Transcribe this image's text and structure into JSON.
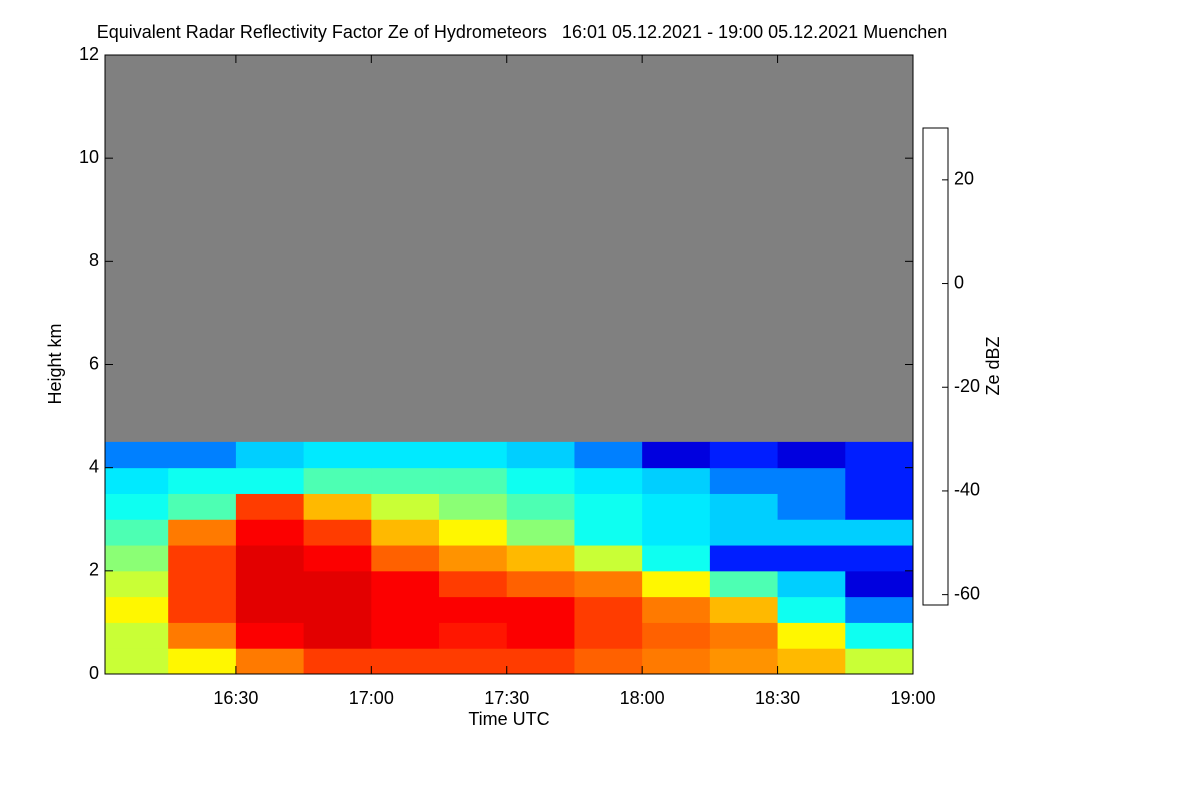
{
  "chart_data": {
    "type": "heatmap",
    "title": "Equivalent Radar Reflectivity Factor Ze of Hydrometeors   16:01 05.12.2021 - 19:00 05.12.2021 Muenchen",
    "x_label": "Time UTC",
    "y_label": "Height km",
    "colorbar_label": "Ze dBZ",
    "x_edges": [
      16.0167,
      16.25,
      16.5,
      16.75,
      17.0,
      17.25,
      17.5,
      17.75,
      18.0,
      18.25,
      18.5,
      18.75,
      19.0
    ],
    "y_edges": [
      0,
      0.5,
      1.0,
      1.5,
      2.0,
      2.5,
      3.0,
      3.5,
      4.0,
      4.5
    ],
    "z": [
      [
        -5,
        0,
        10,
        15,
        15,
        15,
        15,
        12,
        10,
        8,
        5,
        -5
      ],
      [
        -5,
        10,
        20,
        22,
        20,
        18,
        20,
        15,
        12,
        10,
        0,
        -20
      ],
      [
        0,
        15,
        22,
        22,
        20,
        20,
        20,
        15,
        10,
        5,
        -20,
        -35
      ],
      [
        -5,
        15,
        22,
        22,
        20,
        15,
        12,
        10,
        0,
        -15,
        -30,
        -45
      ],
      [
        -10,
        15,
        22,
        20,
        12,
        8,
        5,
        -5,
        -20,
        -40,
        -40,
        -40
      ],
      [
        -15,
        10,
        20,
        15,
        5,
        0,
        -10,
        -20,
        -25,
        -30,
        -30,
        -30
      ],
      [
        -20,
        -15,
        15,
        5,
        -5,
        -10,
        -15,
        -20,
        -25,
        -30,
        -35,
        -40
      ],
      [
        -25,
        -20,
        -20,
        -15,
        -15,
        -15,
        -20,
        -25,
        -30,
        -35,
        -35,
        -40
      ],
      [
        -35,
        -35,
        -30,
        -25,
        -25,
        -25,
        -30,
        -35,
        -45,
        -40,
        -45,
        -40
      ]
    ],
    "xlim": [
      16.0167,
      19.0
    ],
    "ylim": [
      0,
      12
    ],
    "zlim": [
      -62,
      30
    ],
    "xticks": [
      {
        "value": 16.5,
        "label": "16:30"
      },
      {
        "value": 17.0,
        "label": "17:00"
      },
      {
        "value": 17.5,
        "label": "17:30"
      },
      {
        "value": 18.0,
        "label": "18:00"
      },
      {
        "value": 18.5,
        "label": "18:30"
      },
      {
        "value": 19.0,
        "label": "19:00"
      }
    ],
    "yticks": [
      0,
      2,
      4,
      6,
      8,
      10,
      12
    ],
    "zticks": [
      -60,
      -40,
      -20,
      0,
      20
    ],
    "background_color": "#808080",
    "colors": [
      "#6e6e6e",
      "#0000a0",
      "#0000ff",
      "#00c8ff",
      "#00ffff",
      "#80ff80",
      "#ffff00",
      "#ff8000",
      "#ff0000",
      "#800000"
    ]
  }
}
